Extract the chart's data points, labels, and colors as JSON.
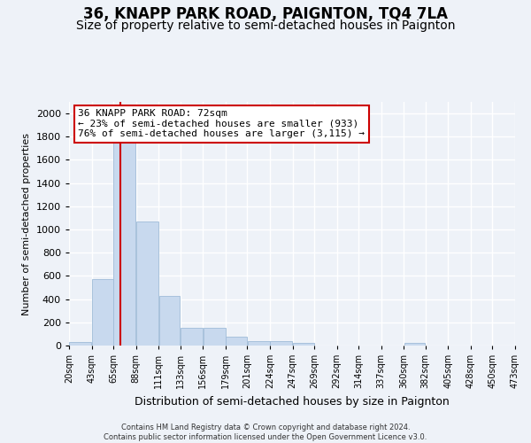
{
  "title": "36, KNAPP PARK ROAD, PAIGNTON, TQ4 7LA",
  "subtitle": "Size of property relative to semi-detached houses in Paignton",
  "xlabel": "Distribution of semi-detached houses by size in Paignton",
  "ylabel": "Number of semi-detached properties",
  "footer_line1": "Contains HM Land Registry data © Crown copyright and database right 2024.",
  "footer_line2": "Contains public sector information licensed under the Open Government Licence v3.0.",
  "annotation_title": "36 KNAPP PARK ROAD: 72sqm",
  "annotation_line2": "← 23% of semi-detached houses are smaller (933)",
  "annotation_line3": "76% of semi-detached houses are larger (3,115) →",
  "bar_color": "#c8d9ee",
  "bar_edge_color": "#a0bcd8",
  "property_line_color": "#cc0000",
  "property_line_x": 72,
  "bins": [
    20,
    43,
    65,
    88,
    111,
    133,
    156,
    179,
    201,
    224,
    247,
    269,
    292,
    314,
    337,
    360,
    382,
    405,
    428,
    450,
    473
  ],
  "bin_labels": [
    "20sqm",
    "43sqm",
    "65sqm",
    "88sqm",
    "111sqm",
    "133sqm",
    "156sqm",
    "179sqm",
    "201sqm",
    "224sqm",
    "247sqm",
    "269sqm",
    "292sqm",
    "314sqm",
    "337sqm",
    "360sqm",
    "382sqm",
    "405sqm",
    "428sqm",
    "450sqm",
    "473sqm"
  ],
  "bar_heights": [
    30,
    570,
    1920,
    1070,
    430,
    155,
    155,
    80,
    40,
    40,
    20,
    0,
    0,
    0,
    0,
    20,
    0,
    0,
    0,
    0
  ],
  "ylim": [
    0,
    2100
  ],
  "yticks": [
    0,
    200,
    400,
    600,
    800,
    1000,
    1200,
    1400,
    1600,
    1800,
    2000
  ],
  "background_color": "#eef2f8",
  "annotation_box_facecolor": "#ffffff",
  "annotation_box_edge": "#cc0000",
  "grid_color": "#ffffff",
  "title_fontsize": 12,
  "subtitle_fontsize": 10,
  "ylabel_fontsize": 8,
  "xlabel_fontsize": 9,
  "ytick_fontsize": 8,
  "xtick_fontsize": 7,
  "footer_fontsize": 6,
  "annotation_fontsize": 8
}
